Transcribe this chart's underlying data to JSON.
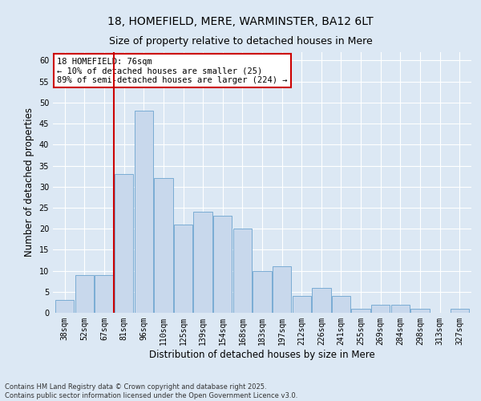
{
  "title": "18, HOMEFIELD, MERE, WARMINSTER, BA12 6LT",
  "subtitle": "Size of property relative to detached houses in Mere",
  "xlabel": "Distribution of detached houses by size in Mere",
  "ylabel": "Number of detached properties",
  "categories": [
    "38sqm",
    "52sqm",
    "67sqm",
    "81sqm",
    "96sqm",
    "110sqm",
    "125sqm",
    "139sqm",
    "154sqm",
    "168sqm",
    "183sqm",
    "197sqm",
    "212sqm",
    "226sqm",
    "241sqm",
    "255sqm",
    "269sqm",
    "284sqm",
    "298sqm",
    "313sqm",
    "327sqm"
  ],
  "values": [
    3,
    9,
    9,
    33,
    48,
    32,
    21,
    24,
    23,
    20,
    10,
    11,
    4,
    6,
    4,
    1,
    2,
    2,
    1,
    0,
    1
  ],
  "bar_color": "#c8d8ec",
  "bar_edge_color": "#7aacd4",
  "vline_x": 2.5,
  "vline_color": "#cc0000",
  "annotation_text": "18 HOMEFIELD: 76sqm\n← 10% of detached houses are smaller (25)\n89% of semi-detached houses are larger (224) →",
  "annotation_box_color": "#ffffff",
  "annotation_box_edge_color": "#cc0000",
  "ylim": [
    0,
    62
  ],
  "yticks": [
    0,
    5,
    10,
    15,
    20,
    25,
    30,
    35,
    40,
    45,
    50,
    55,
    60
  ],
  "background_color": "#dce8f4",
  "footer_text": "Contains HM Land Registry data © Crown copyright and database right 2025.\nContains public sector information licensed under the Open Government Licence v3.0.",
  "title_fontsize": 10,
  "subtitle_fontsize": 9,
  "label_fontsize": 8.5,
  "tick_fontsize": 7,
  "annotation_fontsize": 7.5,
  "footer_fontsize": 6
}
